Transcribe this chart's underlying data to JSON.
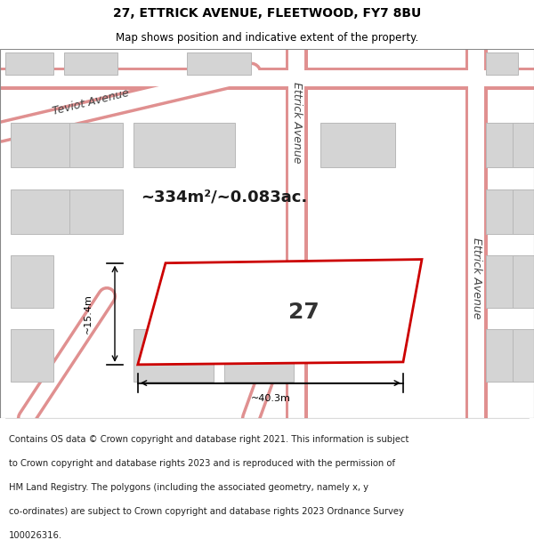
{
  "title": "27, ETTRICK AVENUE, FLEETWOOD, FY7 8BU",
  "subtitle": "Map shows position and indicative extent of the property.",
  "footer_line1": "Contains OS data © Crown copyright and database right 2021. This information is subject",
  "footer_line2": "to Crown copyright and database rights 2023 and is reproduced with the permission of",
  "footer_line3": "HM Land Registry. The polygons (including the associated geometry, namely x, y",
  "footer_line4": "co-ordinates) are subject to Crown copyright and database rights 2023 Ordnance Survey",
  "footer_line5": "100026316.",
  "bg_color": "#ffffff",
  "map_bg": "#f2f2f2",
  "building_fill": "#d4d4d4",
  "building_stroke": "#b8b8b8",
  "plot_outline_color": "#cc0000",
  "road_line_color": "#e09090",
  "road_fill_color": "#ffffff",
  "area_text": "~334m²/~0.083ac.",
  "plot_number": "27",
  "dim_width": "~40.3m",
  "dim_height": "~15.4m",
  "teviot_label": "Teviot Avenue",
  "ettrick_label": "Ettrick Avenue",
  "title_fontsize": 10,
  "subtitle_fontsize": 8.5,
  "footer_fontsize": 7.2,
  "area_fontsize": 13,
  "plot_num_fontsize": 18,
  "dim_fontsize": 8,
  "road_label_fontsize": 9
}
